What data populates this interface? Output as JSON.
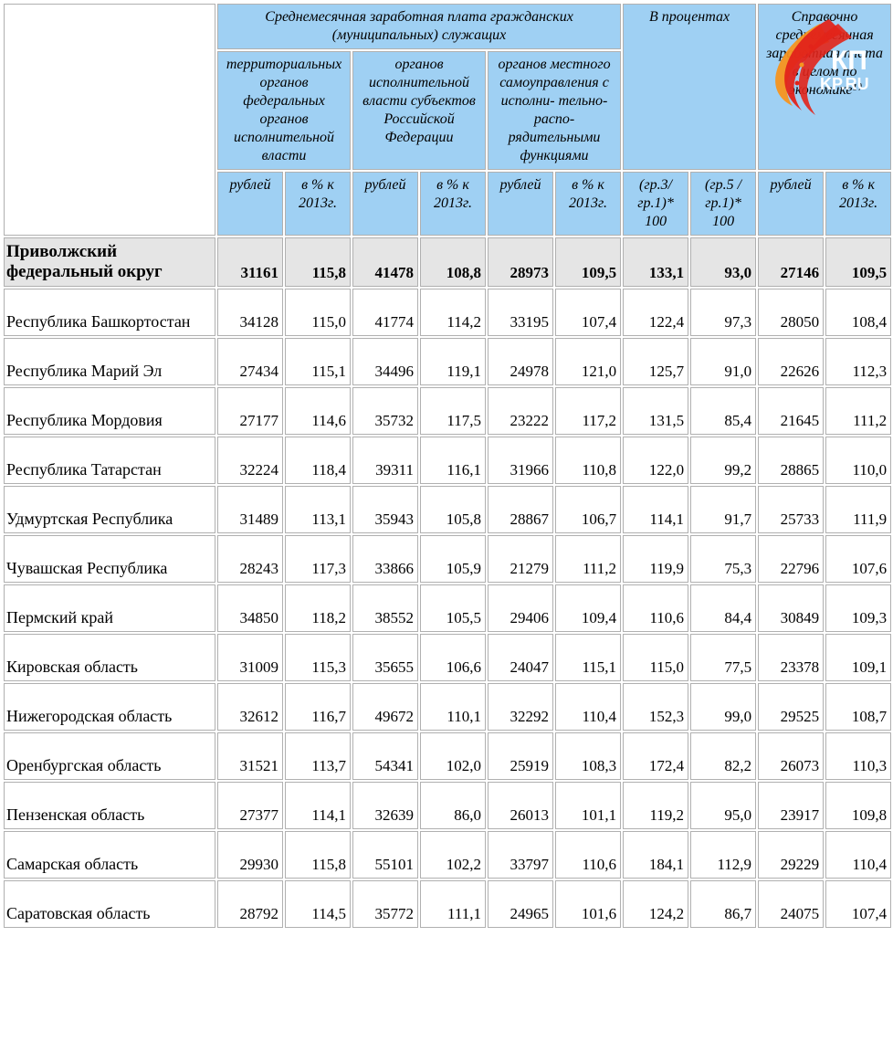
{
  "colors": {
    "header_bg": "#9fd0f3",
    "summary_bg": "#e5e5e5",
    "cell_bg": "#ffffff",
    "border": "#b0b0b0",
    "text": "#000000",
    "logo_red": "#e2231a",
    "logo_orange": "#f7941e"
  },
  "fonts": {
    "body_family": "Times New Roman",
    "header_style": "italic",
    "header_size_pt": 12,
    "cell_size_pt": 13
  },
  "headers": {
    "group1": "Среднемесячная заработная плата гражданских (муниципальных) служащих",
    "group2": "В процентах",
    "group3": "Справочно среднемесячная заработная плата в целом по экономике¹⁾",
    "sub1": "территориальных органов федеральных органов исполнительной власти",
    "sub2": "органов исполнительной власти субъектов Российской Федерации",
    "sub3": "органов местного самоуправления с исполни- тельно-распо- рядительными функциями",
    "rub": "рублей",
    "pct": "в % к 2013г.",
    "ratio1": "(гр.3/ гр.1)* 100",
    "ratio2": "(гр.5 / гр.1)* 100"
  },
  "summary": {
    "name": "Приволжский федеральный округ",
    "v": [
      "31161",
      "115,8",
      "41478",
      "108,8",
      "28973",
      "109,5",
      "133,1",
      "93,0",
      "27146",
      "109,5"
    ]
  },
  "rows": [
    {
      "name": "Республика Башкортостан",
      "v": [
        "34128",
        "115,0",
        "41774",
        "114,2",
        "33195",
        "107,4",
        "122,4",
        "97,3",
        "28050",
        "108,4"
      ]
    },
    {
      "name": "Республика Марий Эл",
      "v": [
        "27434",
        "115,1",
        "34496",
        "119,1",
        "24978",
        "121,0",
        "125,7",
        "91,0",
        "22626",
        "112,3"
      ]
    },
    {
      "name": "Республика Мордовия",
      "v": [
        "27177",
        "114,6",
        "35732",
        "117,5",
        "23222",
        "117,2",
        "131,5",
        "85,4",
        "21645",
        "111,2"
      ]
    },
    {
      "name": "Республика Татарстан",
      "v": [
        "32224",
        "118,4",
        "39311",
        "116,1",
        "31966",
        "110,8",
        "122,0",
        "99,2",
        "28865",
        "110,0"
      ]
    },
    {
      "name": "Удмуртская Республика",
      "v": [
        "31489",
        "113,1",
        "35943",
        "105,8",
        "28867",
        "106,7",
        "114,1",
        "91,7",
        "25733",
        "111,9"
      ]
    },
    {
      "name": "Чувашская Республика",
      "v": [
        "28243",
        "117,3",
        "33866",
        "105,9",
        "21279",
        "111,2",
        "119,9",
        "75,3",
        "22796",
        "107,6"
      ]
    },
    {
      "name": "Пермский край",
      "v": [
        "34850",
        "118,2",
        "38552",
        "105,5",
        "29406",
        "109,4",
        "110,6",
        "84,4",
        "30849",
        "109,3"
      ]
    },
    {
      "name": "Кировская область",
      "v": [
        "31009",
        "115,3",
        "35655",
        "106,6",
        "24047",
        "115,1",
        "115,0",
        "77,5",
        "23378",
        "109,1"
      ]
    },
    {
      "name": "Нижегородская область",
      "v": [
        "32612",
        "116,7",
        "49672",
        "110,1",
        "32292",
        "110,4",
        "152,3",
        "99,0",
        "29525",
        "108,7"
      ]
    },
    {
      "name": "Оренбургская область",
      "v": [
        "31521",
        "113,7",
        "54341",
        "102,0",
        "25919",
        "108,3",
        "172,4",
        "82,2",
        "26073",
        "110,3"
      ]
    },
    {
      "name": "Пензенская область",
      "v": [
        "27377",
        "114,1",
        "32639",
        "86,0",
        "26013",
        "101,1",
        "119,2",
        "95,0",
        "23917",
        "109,8"
      ]
    },
    {
      "name": "Самарская область",
      "v": [
        "29930",
        "115,8",
        "55101",
        "102,2",
        "33797",
        "110,6",
        "184,1",
        "112,9",
        "29229",
        "110,4"
      ]
    },
    {
      "name": "Саратовская область",
      "v": [
        "28792",
        "114,5",
        "35772",
        "111,1",
        "24965",
        "101,6",
        "124,2",
        "86,7",
        "24075",
        "107,4"
      ]
    }
  ],
  "logo": {
    "text_top": "КП",
    "text_bottom": "KP.RU"
  }
}
